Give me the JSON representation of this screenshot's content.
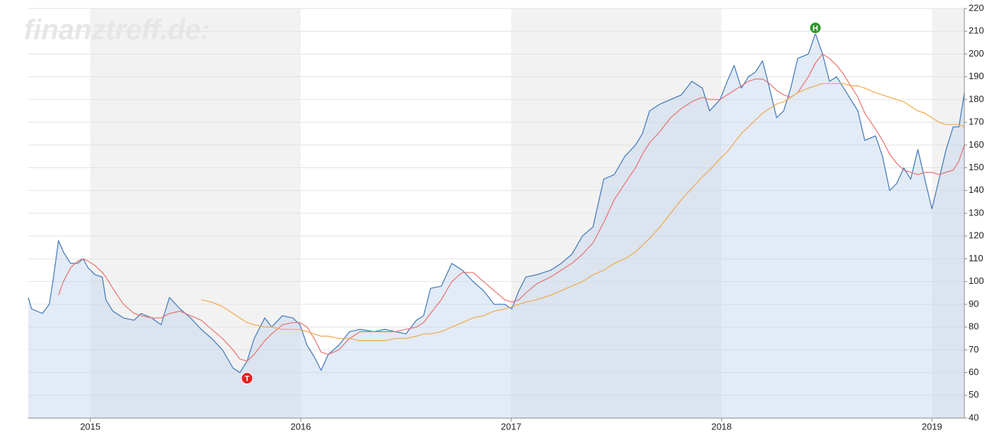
{
  "chart_data": {
    "type": "line",
    "watermark": "finanztreff.de:",
    "x": [
      2014.705,
      2014.721,
      2014.772,
      2014.805,
      2014.822,
      2014.849,
      2014.872,
      2014.906,
      2014.94,
      2014.966,
      2014.99,
      2015.023,
      2015.057,
      2015.074,
      2015.107,
      2015.158,
      2015.208,
      2015.242,
      2015.292,
      2015.336,
      2015.376,
      2015.426,
      2015.477,
      2015.527,
      2015.577,
      2015.628,
      2015.678,
      2015.711,
      2015.745,
      2015.779,
      2015.829,
      2015.862,
      2015.913,
      2015.963,
      2015.997,
      2016.03,
      2016.064,
      2016.097,
      2016.131,
      2016.181,
      2016.232,
      2016.282,
      2016.349,
      2016.399,
      2016.45,
      2016.5,
      2016.55,
      2016.584,
      2016.617,
      2016.668,
      2016.718,
      2016.768,
      2016.819,
      2016.869,
      2016.919,
      2016.97,
      2017.003,
      2017.037,
      2017.07,
      2017.121,
      2017.188,
      2017.238,
      2017.289,
      2017.339,
      2017.389,
      2017.44,
      2017.49,
      2017.54,
      2017.591,
      2017.624,
      2017.658,
      2017.708,
      2017.758,
      2017.809,
      2017.859,
      2017.909,
      2017.943,
      2017.993,
      2018.027,
      2018.06,
      2018.094,
      2018.128,
      2018.161,
      2018.195,
      2018.228,
      2018.262,
      2018.295,
      2018.329,
      2018.362,
      2018.413,
      2018.446,
      2018.48,
      2018.513,
      2018.547,
      2018.581,
      2018.614,
      2018.648,
      2018.681,
      2018.732,
      2018.765,
      2018.799,
      2018.832,
      2018.866,
      2018.899,
      2018.933,
      2018.966,
      2019.0,
      2019.034,
      2019.067,
      2019.101,
      2019.128,
      2019.154
    ],
    "series": [
      {
        "color": "#4a7ebb",
        "area": true,
        "values": [
          93,
          88,
          86,
          90,
          100,
          118,
          113,
          108,
          108,
          110,
          106,
          103,
          102,
          92,
          87,
          84,
          83,
          86,
          84,
          81,
          93,
          88,
          84,
          79,
          75,
          70,
          62,
          60,
          65,
          75,
          84,
          80,
          85,
          84,
          81,
          72,
          67,
          61,
          68,
          72,
          78,
          79,
          78,
          79,
          78,
          77,
          83,
          85,
          97,
          98,
          108,
          105,
          100,
          96,
          90,
          90,
          88,
          96,
          102,
          103,
          105,
          108,
          112,
          120,
          124,
          145,
          147,
          155,
          160,
          165,
          175,
          178,
          180,
          182,
          188,
          185,
          175,
          180,
          188,
          195,
          185,
          190,
          192,
          197,
          185,
          172,
          175,
          185,
          198,
          200,
          209,
          200,
          188,
          190,
          185,
          180,
          175,
          162,
          164,
          155,
          140,
          143,
          150,
          145,
          158,
          145,
          132,
          145,
          158,
          168,
          168,
          183
        ]
      },
      {
        "color": "#e8706f",
        "values": [
          null,
          null,
          null,
          null,
          null,
          94,
          100,
          106,
          109,
          110,
          109,
          107,
          104,
          102,
          97,
          90,
          86,
          85,
          84,
          84,
          86,
          87,
          85,
          83,
          79,
          75,
          70,
          66,
          65,
          68,
          74,
          77,
          81,
          82,
          82,
          80,
          75,
          69,
          68,
          70,
          75,
          78,
          78,
          78,
          78,
          79,
          80,
          82,
          86,
          92,
          100,
          104,
          104,
          100,
          96,
          92,
          91,
          92,
          95,
          99,
          102,
          105,
          108,
          112,
          117,
          126,
          136,
          143,
          150,
          156,
          161,
          166,
          172,
          176,
          179,
          181,
          180,
          180,
          182,
          184,
          186,
          188,
          189,
          189,
          187,
          184,
          182,
          181,
          183,
          190,
          196,
          200,
          198,
          195,
          191,
          186,
          181,
          174,
          167,
          162,
          156,
          152,
          149,
          148,
          147,
          148,
          148,
          147,
          148,
          149,
          153,
          160
        ]
      },
      {
        "color": "#f0a848",
        "values": [
          null,
          null,
          null,
          null,
          null,
          null,
          null,
          null,
          null,
          null,
          null,
          null,
          null,
          null,
          null,
          null,
          null,
          null,
          null,
          null,
          null,
          null,
          null,
          92,
          91,
          89,
          86,
          84,
          82,
          81,
          80,
          80,
          79,
          79,
          79,
          78,
          77,
          76,
          76,
          75,
          75,
          74,
          74,
          74,
          75,
          75,
          76,
          77,
          77,
          78,
          80,
          82,
          84,
          85,
          87,
          88,
          89,
          90,
          91,
          92,
          94,
          96,
          98,
          100,
          103,
          105,
          108,
          110,
          113,
          116,
          119,
          124,
          130,
          136,
          141,
          146,
          149,
          154,
          157,
          161,
          165,
          168,
          171,
          174,
          176,
          178,
          179,
          181,
          183,
          185,
          186,
          187,
          187,
          187,
          187,
          186,
          186,
          185,
          183,
          182,
          181,
          180,
          179,
          177,
          175,
          174,
          172,
          170,
          169,
          169,
          169,
          168
        ]
      }
    ],
    "annotations": [
      {
        "label": "H",
        "x": 2018.446,
        "y": 209,
        "color": "#2a9a2a"
      },
      {
        "label": "T",
        "x": 2015.745,
        "y": 60,
        "color": "#e82020"
      }
    ],
    "xlim": [
      2014.705,
      2019.154
    ],
    "xticks": [
      2015,
      2016,
      2017,
      2018,
      2019
    ],
    "ylim": [
      40,
      220
    ],
    "yticks": [
      40,
      50,
      60,
      70,
      80,
      90,
      100,
      110,
      120,
      130,
      140,
      150,
      160,
      170,
      180,
      190,
      200,
      210,
      220
    ],
    "grid": true
  }
}
